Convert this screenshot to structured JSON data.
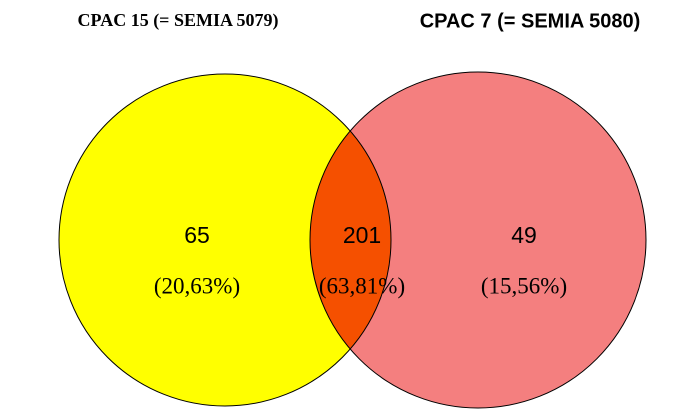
{
  "chart_data": {
    "type": "venn",
    "sets": [
      {
        "name": "CPAC 15 (= SEMIA 5079)",
        "color": "#ffff00"
      },
      {
        "name": "CPAC 7 (= SEMIA 5080)",
        "color": "#f47f7f"
      }
    ],
    "overlap_color": "#f55000",
    "values": [
      65,
      201,
      49
    ],
    "value_labels": [
      "(20,63%)",
      "(63,81%)",
      "(15,56%)"
    ]
  }
}
